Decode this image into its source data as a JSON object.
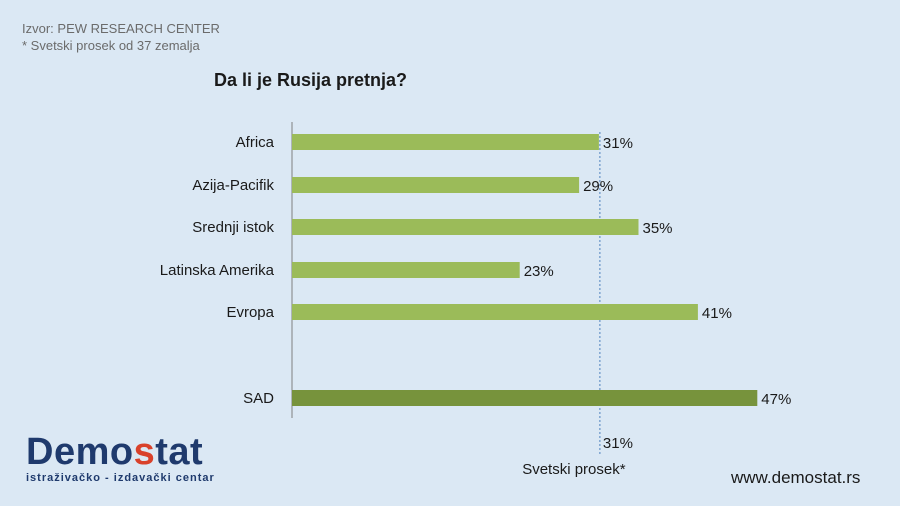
{
  "source_line": "Izvor: PEW RESEARCH CENTER",
  "note_line": "* Svetski prosek od 37 zemalja",
  "logo": {
    "part1": "Demo",
    "accent": "s",
    "part2": "tat",
    "tagline": "istraživačko - izdavački centar"
  },
  "website": "www.demostat.rs",
  "colors": {
    "bar_light": "#9bbb59",
    "bar_dark": "#77933c",
    "axis": "#7f7f7f",
    "avg_line": "#4f81bd",
    "background": "#dbe8f4"
  },
  "chart_data": {
    "type": "bar",
    "orientation": "horizontal",
    "title": "Da li je Rusija pretnja?",
    "categories": [
      "Africa",
      "Azija-Pacifik",
      "Srednji istok",
      "Latinska Amerika",
      "Evropa",
      "SAD"
    ],
    "values": [
      31,
      29,
      35,
      23,
      41,
      47
    ],
    "value_labels": [
      "31%",
      "29%",
      "35%",
      "23%",
      "41%",
      "47%"
    ],
    "highlight": [
      "normal",
      "normal",
      "normal",
      "normal",
      "normal",
      "highlight"
    ],
    "xlim": [
      0,
      50
    ],
    "reference_line": {
      "value": 31,
      "value_label": "31%",
      "label": "Svetski prosek*"
    },
    "unit": "%"
  }
}
